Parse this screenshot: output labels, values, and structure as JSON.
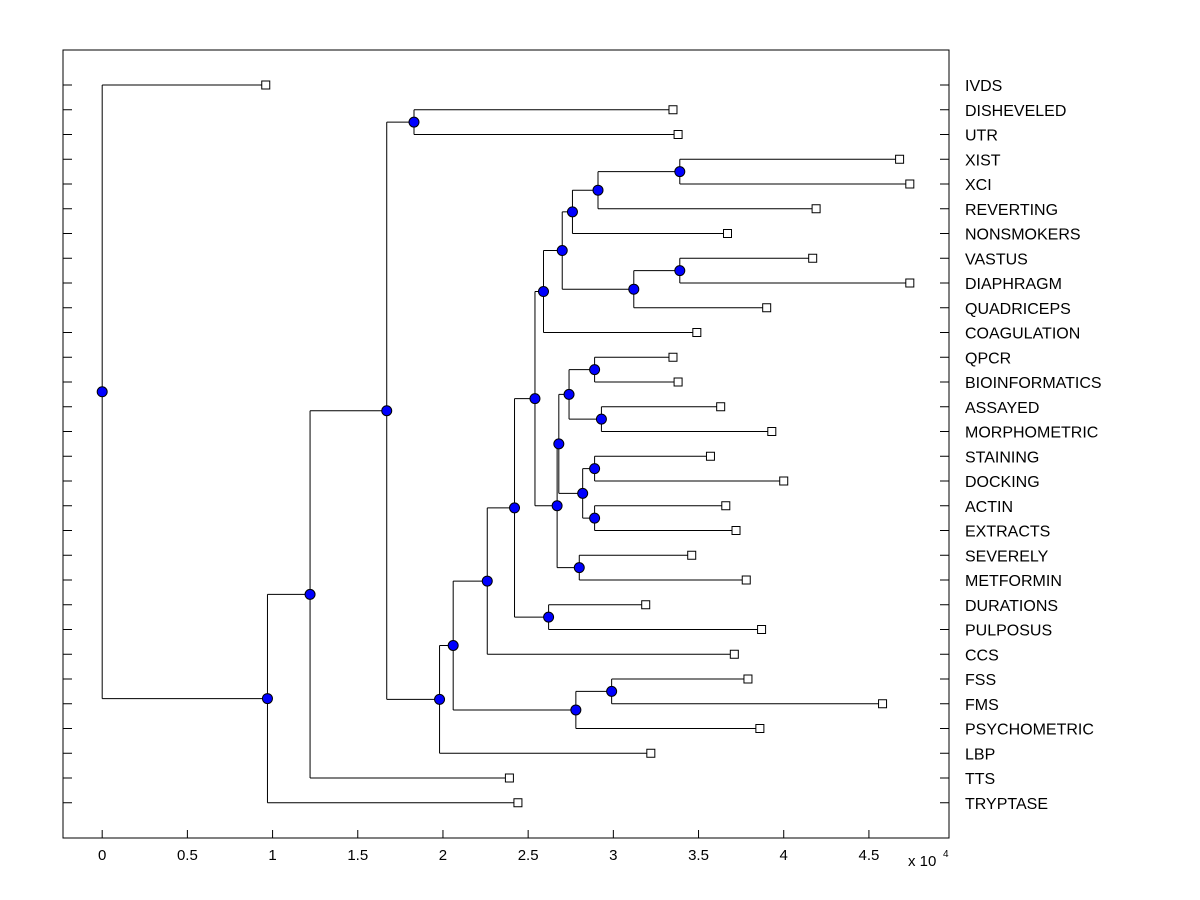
{
  "chart_data": {
    "type": "dendrogram",
    "xlabel_multiplier": "x 10",
    "xlabel_exponent": "4",
    "xlim": [
      -0.23,
      4.97
    ],
    "x_ticks": [
      0,
      0.5,
      1,
      1.5,
      2,
      2.5,
      3,
      3.5,
      4,
      4.5
    ],
    "x_tick_labels": [
      "0",
      "0.5",
      "1",
      "1.5",
      "2",
      "2.5",
      "3",
      "3.5",
      "4",
      "4.5"
    ],
    "grid": false,
    "colors": {
      "node_fill": "#0000ff",
      "leaf_fill": "#ffffff",
      "line": "#000000"
    },
    "leaves": [
      {
        "label": "IVDS",
        "value": 0.96
      },
      {
        "label": "DISHEVELED",
        "value": 3.35
      },
      {
        "label": "UTR",
        "value": 3.38
      },
      {
        "label": "XIST",
        "value": 4.68
      },
      {
        "label": "XCI",
        "value": 4.74
      },
      {
        "label": "REVERTING",
        "value": 4.19
      },
      {
        "label": "NONSMOKERS",
        "value": 3.67
      },
      {
        "label": "VASTUS",
        "value": 4.17
      },
      {
        "label": "DIAPHRAGM",
        "value": 4.74
      },
      {
        "label": "QUADRICEPS",
        "value": 3.9
      },
      {
        "label": "COAGULATION",
        "value": 3.49
      },
      {
        "label": "QPCR",
        "value": 3.35
      },
      {
        "label": "BIOINFORMATICS",
        "value": 3.38
      },
      {
        "label": "ASSAYED",
        "value": 3.63
      },
      {
        "label": "MORPHOMETRIC",
        "value": 3.93
      },
      {
        "label": "STAINING",
        "value": 3.57
      },
      {
        "label": "DOCKING",
        "value": 4.0
      },
      {
        "label": "ACTIN",
        "value": 3.66
      },
      {
        "label": "EXTRACTS",
        "value": 3.72
      },
      {
        "label": "SEVERELY",
        "value": 3.46
      },
      {
        "label": "METFORMIN",
        "value": 3.78
      },
      {
        "label": "DURATIONS",
        "value": 3.19
      },
      {
        "label": "PULPOSUS",
        "value": 3.87
      },
      {
        "label": "CCS",
        "value": 3.71
      },
      {
        "label": "FSS",
        "value": 3.79
      },
      {
        "label": "FMS",
        "value": 4.58
      },
      {
        "label": "PSYCHOMETRIC",
        "value": 3.86
      },
      {
        "label": "LBP",
        "value": 3.22
      },
      {
        "label": "TTS",
        "value": 2.39
      },
      {
        "label": "TRYPTASE",
        "value": 2.44
      }
    ],
    "nodes": [
      {
        "id": "n_xist_xci",
        "value": 3.39,
        "children": [
          "L3",
          "L4"
        ]
      },
      {
        "id": "n_rev",
        "value": 2.91,
        "children": [
          "n_xist_xci",
          "L5"
        ]
      },
      {
        "id": "n_nons",
        "value": 2.76,
        "children": [
          "n_rev",
          "L6"
        ]
      },
      {
        "id": "n_vas_dia",
        "value": 3.39,
        "children": [
          "L7",
          "L8"
        ]
      },
      {
        "id": "n_quad",
        "value": 3.12,
        "children": [
          "n_vas_dia",
          "L9"
        ]
      },
      {
        "id": "n_top_mid",
        "value": 2.7,
        "children": [
          "n_nons",
          "n_quad"
        ]
      },
      {
        "id": "n_coag",
        "value": 2.59,
        "children": [
          "n_top_mid",
          "L10"
        ]
      },
      {
        "id": "n_qpcr_bio",
        "value": 2.89,
        "children": [
          "L11",
          "L12"
        ]
      },
      {
        "id": "n_assay_morph",
        "value": 2.93,
        "children": [
          "L13",
          "L14"
        ]
      },
      {
        "id": "n_qpcr_grp",
        "value": 2.74,
        "children": [
          "n_qpcr_bio",
          "n_assay_morph"
        ]
      },
      {
        "id": "n_stain_dock",
        "value": 2.89,
        "children": [
          "L15",
          "L16"
        ]
      },
      {
        "id": "n_actin_ext",
        "value": 2.89,
        "children": [
          "L17",
          "L18"
        ]
      },
      {
        "id": "n_stain_grp",
        "value": 2.82,
        "children": [
          "n_stain_dock",
          "n_actin_ext"
        ]
      },
      {
        "id": "n_mid_grp",
        "value": 2.68,
        "children": [
          "n_qpcr_grp",
          "n_stain_grp"
        ]
      },
      {
        "id": "n_sev_met",
        "value": 2.8,
        "children": [
          "L19",
          "L20"
        ]
      },
      {
        "id": "n_lower_mid",
        "value": 2.67,
        "children": [
          "n_mid_grp",
          "n_sev_met"
        ]
      },
      {
        "id": "n_big",
        "value": 2.54,
        "children": [
          "n_coag",
          "n_lower_mid"
        ]
      },
      {
        "id": "n_dur_pul",
        "value": 2.62,
        "children": [
          "L21",
          "L22"
        ]
      },
      {
        "id": "n_big2",
        "value": 2.42,
        "children": [
          "n_big",
          "n_dur_pul"
        ]
      },
      {
        "id": "n_ccs",
        "value": 2.26,
        "children": [
          "n_big2",
          "L23"
        ]
      },
      {
        "id": "n_fss_fms",
        "value": 2.99,
        "children": [
          "L24",
          "L25"
        ]
      },
      {
        "id": "n_psych",
        "value": 2.78,
        "children": [
          "n_fss_fms",
          "L26"
        ]
      },
      {
        "id": "n_fss_grp",
        "value": 2.06,
        "children": [
          "n_ccs",
          "n_psych"
        ]
      },
      {
        "id": "n_lbp",
        "value": 1.98,
        "children": [
          "n_fss_grp",
          "L27"
        ]
      },
      {
        "id": "n_dish_utr",
        "value": 1.83,
        "children": [
          "L1",
          "L2"
        ]
      },
      {
        "id": "n_main",
        "value": 1.67,
        "children": [
          "n_dish_utr",
          "n_lbp"
        ]
      },
      {
        "id": "n_tts",
        "value": 1.22,
        "children": [
          "n_main",
          "L28"
        ]
      },
      {
        "id": "n_trypt",
        "value": 0.97,
        "children": [
          "n_tts",
          "L29"
        ]
      },
      {
        "id": "n_root",
        "value": 0.0,
        "children": [
          "L0",
          "n_trypt"
        ]
      }
    ]
  }
}
